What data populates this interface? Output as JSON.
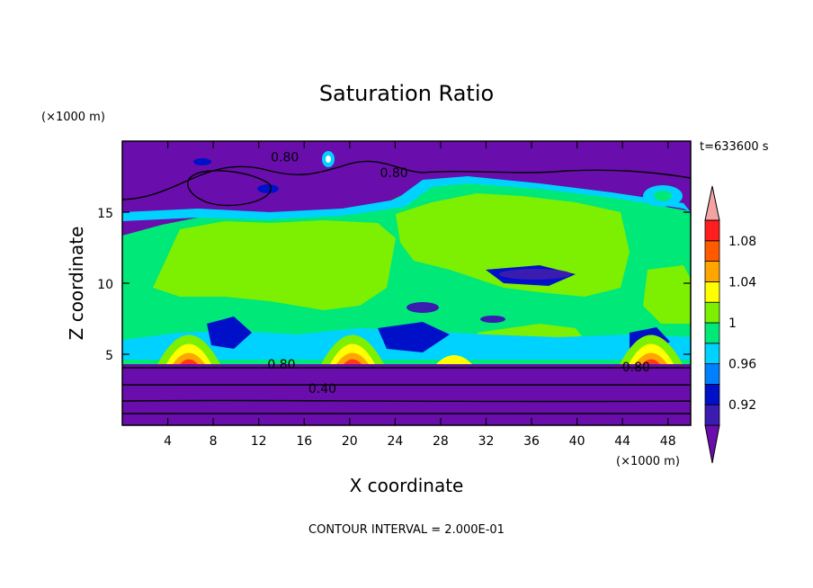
{
  "chart_data": {
    "type": "heatmap",
    "title": "Saturation Ratio",
    "xlabel": "X coordinate",
    "ylabel": "Z coordinate",
    "x_unit": "(×1000 m)",
    "z_unit": "(×1000 m)",
    "time_label": "t=633600 s",
    "footer": "CONTOUR INTERVAL = 2.000E-01",
    "xlim": [
      0,
      50
    ],
    "ylim": [
      0,
      20
    ],
    "x_ticks": [
      "4",
      "8",
      "12",
      "16",
      "20",
      "24",
      "28",
      "32",
      "36",
      "40",
      "44",
      "48"
    ],
    "x_tick_values": [
      4,
      8,
      12,
      16,
      20,
      24,
      28,
      32,
      36,
      40,
      44,
      48
    ],
    "y_ticks": [
      "5",
      "10",
      "15"
    ],
    "y_tick_values": [
      5,
      10,
      15
    ],
    "colorbar": {
      "levels": [
        0.92,
        0.94,
        0.96,
        0.98,
        1.0,
        1.02,
        1.04,
        1.06,
        1.08,
        1.1
      ],
      "labels": [
        "0.92",
        "0.96",
        "1",
        "1.04",
        "1.08"
      ],
      "label_values": [
        0.92,
        0.96,
        1.0,
        1.04,
        1.08
      ],
      "colors": [
        "#6a0dad",
        "#3a1cb0",
        "#0010c8",
        "#0080ff",
        "#00d2ff",
        "#00e878",
        "#7cf000",
        "#ffff00",
        "#ffa500",
        "#ff5a00",
        "#ff1e1e",
        "#f4a3a3"
      ]
    },
    "contour_labels": [
      {
        "text": "0.80",
        "x": 14.3,
        "z": 18.9
      },
      {
        "text": "0.80",
        "x": 23.9,
        "z": 17.8
      },
      {
        "text": "0.80",
        "x": 14.0,
        "z": 4.3
      },
      {
        "text": "0.40",
        "x": 17.6,
        "z": 2.6
      },
      {
        "text": "0.80",
        "x": 45.2,
        "z": 4.1
      }
    ]
  }
}
